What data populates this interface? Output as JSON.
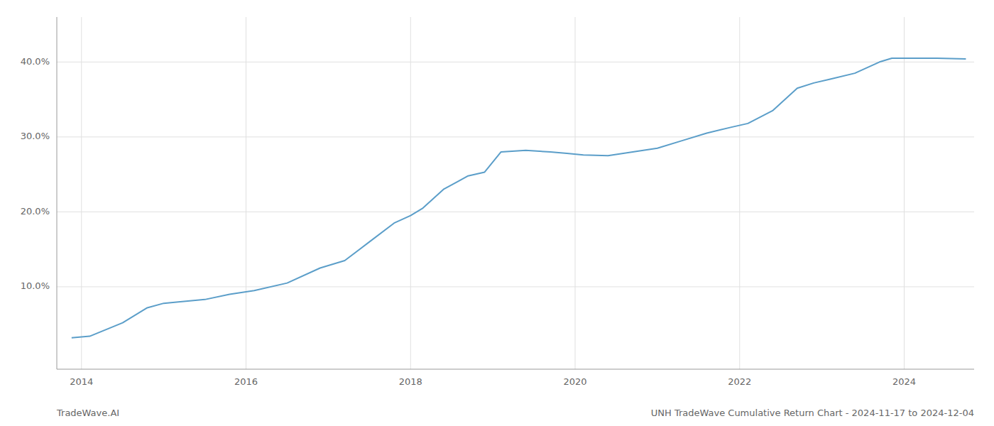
{
  "chart_data": {
    "type": "line",
    "title": "UNH TradeWave Cumulative Return Chart - 2024-11-17 to 2024-12-04",
    "annotations": [
      "TradeWave.AI"
    ],
    "x": [
      2013.88,
      2014.1,
      2014.5,
      2014.8,
      2015.0,
      2015.2,
      2015.5,
      2015.8,
      2016.1,
      2016.5,
      2016.9,
      2017.2,
      2017.5,
      2017.8,
      2018.0,
      2018.15,
      2018.4,
      2018.7,
      2018.9,
      2019.1,
      2019.4,
      2019.7,
      2019.9,
      2020.1,
      2020.4,
      2020.7,
      2021.0,
      2021.3,
      2021.6,
      2021.9,
      2022.1,
      2022.4,
      2022.7,
      2022.9,
      2023.1,
      2023.4,
      2023.7,
      2023.85,
      2024.0,
      2024.4,
      2024.75
    ],
    "values": [
      3.2,
      3.4,
      5.2,
      7.2,
      7.8,
      8.0,
      8.3,
      9.0,
      9.5,
      10.5,
      12.5,
      13.5,
      16.0,
      18.5,
      19.5,
      20.5,
      23.0,
      24.8,
      25.3,
      28.0,
      28.2,
      28.0,
      27.8,
      27.6,
      27.5,
      28.0,
      28.5,
      29.5,
      30.5,
      31.3,
      31.8,
      33.5,
      36.5,
      37.2,
      37.7,
      38.5,
      40.0,
      40.5,
      40.5,
      40.5,
      40.4
    ],
    "color": "#5b9ec9",
    "xlim": [
      2013.7,
      2024.85
    ],
    "ylim": [
      -1,
      46
    ],
    "xticks": [
      2014,
      2016,
      2018,
      2020,
      2022,
      2024
    ],
    "yticks": [
      {
        "value": 10.0,
        "label": "10.0%"
      },
      {
        "value": 20.0,
        "label": "20.0%"
      },
      {
        "value": 30.0,
        "label": "30.0%"
      },
      {
        "value": 40.0,
        "label": "40.0%"
      }
    ],
    "grid": true
  }
}
